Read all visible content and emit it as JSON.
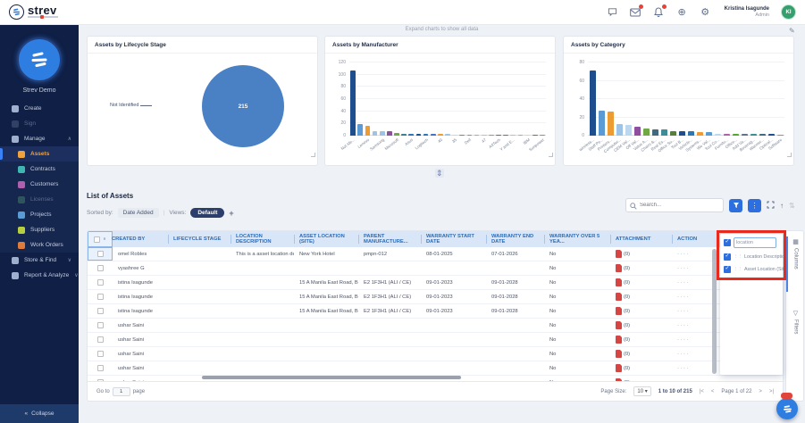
{
  "header": {
    "logo_text": "strev",
    "user_name": "Kristina Isagunde",
    "user_role": "Admin",
    "avatar_initials": "KI"
  },
  "sidebar": {
    "workspace": "Strev Demo",
    "collapse_label": "Collapse",
    "collapse_icon": "«",
    "items": [
      {
        "label": "Create",
        "icon": "create-icon",
        "color": "#9fb0cf"
      },
      {
        "label": "Sign",
        "icon": "sign-icon",
        "color": "#5a6b8c",
        "dim": true
      },
      {
        "label": "Manage",
        "icon": "manage-icon",
        "color": "#9fb0cf",
        "chevron": "up",
        "section": true
      },
      {
        "label": "Assets",
        "icon": "assets-icon",
        "color": "#f0a23c",
        "selected": true,
        "sub": true
      },
      {
        "label": "Contracts",
        "icon": "contracts-icon",
        "color": "#3fb6b2",
        "sub": true
      },
      {
        "label": "Customers",
        "icon": "customers-icon",
        "color": "#b05fae",
        "sub": true
      },
      {
        "label": "Licenses",
        "icon": "licenses-icon",
        "color": "#4f8f6f",
        "dim": true,
        "sub": true
      },
      {
        "label": "Projects",
        "icon": "projects-icon",
        "color": "#5b9bd5",
        "sub": true
      },
      {
        "label": "Suppliers",
        "icon": "suppliers-icon",
        "color": "#b7cf3e",
        "sub": true
      },
      {
        "label": "Work Orders",
        "icon": "work-orders-icon",
        "color": "#e07b3a",
        "sub": true
      },
      {
        "label": "Store & Find",
        "icon": "store-find-icon",
        "color": "#9fb0cf",
        "chevron": "down",
        "section": true
      },
      {
        "label": "Report & Analyze",
        "icon": "report-icon",
        "color": "#9fb0cf",
        "chevron": "down",
        "section": true
      }
    ]
  },
  "main": {
    "hint": "Expand charts to show all data"
  },
  "chart_data": [
    {
      "type": "pie",
      "title": "Assets by Lifecycle Stage",
      "slices": [
        {
          "label": "Not Identified",
          "value": 215
        }
      ],
      "color": "#4a80c4",
      "center_label": "215",
      "callout_label": "Not Identified"
    },
    {
      "type": "bar",
      "title": "Assets by Manufacturer",
      "ylim": [
        0,
        120
      ],
      "yticks": [
        0,
        20,
        40,
        60,
        80,
        100,
        120
      ],
      "values": [
        107,
        19,
        16,
        8,
        8,
        7,
        4,
        3,
        3,
        3,
        3,
        3,
        3,
        2.5,
        2,
        2,
        2,
        2,
        1.5,
        1.5,
        1.5,
        1.5,
        1,
        1,
        1,
        1,
        1
      ],
      "labels": [
        "Not Ide...",
        "Lenovo",
        "Samsung",
        "Microsoft",
        "Asus",
        "Logitech",
        "40",
        "35",
        "Dell",
        "47",
        "A4Tech",
        "Y and E...",
        "IBM",
        "Sunpower"
      ],
      "label_every": 2,
      "grid": true,
      "colors": [
        "#1f4e8f",
        "#5b9bd5",
        "#ed9b33",
        "#9dc3e6",
        "#9dc3e6",
        "#8e4f9e",
        "#70a845",
        "#3e7f8c",
        "#2e75b6",
        "#1f4e8f",
        "#2e75b6",
        "#4472c4",
        "#ed9b33",
        "#9dc3e6",
        "#bdd7ee",
        "#b05fae",
        "#70a845",
        "#a6a6a6",
        "#9dc3e6",
        "#8497b0",
        "#2e75b6",
        "#4472c4",
        "#9dc3e6",
        "#ed9b33",
        "#bdd7ee",
        "#8e4f9e",
        "#70a845"
      ]
    },
    {
      "type": "bar",
      "title": "Assets by Category",
      "ylim": [
        0,
        80
      ],
      "yticks": [
        0,
        20,
        40,
        60,
        80
      ],
      "values": [
        71,
        27,
        26,
        13,
        12,
        10,
        8,
        7,
        7,
        5,
        5,
        5,
        4,
        4,
        2,
        2,
        2,
        2,
        1.5,
        1.5,
        1.5,
        1
      ],
      "labels": [
        "wireless...",
        "Staff Pe...",
        "Printers...",
        "Computer...",
        "OEM Val...",
        "Off Val...",
        "Value A...",
        "Chairs &...",
        "Real Es...",
        "Office Su...",
        "Tool B...",
        "Vehicle...",
        "Systems...",
        "We Val...",
        "Tool Co...",
        "Furnitu...",
        "Office...",
        "Add Va...",
        "Beverag...",
        "Warmer...",
        "Optical...",
        "Software"
      ],
      "label_every": 1,
      "grid": true,
      "colors": [
        "#1f4e8f",
        "#5b9bd5",
        "#ed9b33",
        "#9dc3e6",
        "#bdd7ee",
        "#8e4f9e",
        "#70a845",
        "#44687d",
        "#3e8c96",
        "#55803c",
        "#1f4e8f",
        "#2e75b6",
        "#ed9b33",
        "#5b9bd5",
        "#bdd7ee",
        "#b05fae",
        "#55a630",
        "#607489",
        "#3e8c96",
        "#44687d",
        "#1f4e8f",
        "#5b9bd5"
      ]
    }
  ],
  "list": {
    "title": "List of Assets",
    "sorted_by_label": "Sorted by:",
    "sort_chip": "Date Added",
    "views_label": "Views:",
    "view_chip": "Default",
    "add_view": "+",
    "search_placeholder": "Search..."
  },
  "table": {
    "columns": [
      "CREATED BY",
      "LIFECYCLE STAGE",
      "LOCATION DESCRIPTION",
      "ASSET LOCATION (SITE)",
      "PARENT MANUFACTURE...",
      "WARRANTY START DATE",
      "WARRANTY END DATE",
      "WARRANTY OVER 5 YEA...",
      "ATTACHMENT",
      "ACTION"
    ],
    "rows": [
      {
        "created_by": "omel Robles",
        "lifecycle_stage": "",
        "location_description": "This is a asset location desc...",
        "asset_location": "New York Hotel",
        "parent_manufacturer": "pmpn-012",
        "warranty_start": "08-01-2025",
        "warranty_end": "07-01-2026",
        "warranty_over_5": "No",
        "attachment": "(0)",
        "action": "····"
      },
      {
        "created_by": "vyashree G",
        "lifecycle_stage": "",
        "location_description": "",
        "asset_location": "",
        "parent_manufacturer": "",
        "warranty_start": "",
        "warranty_end": "",
        "warranty_over_5": "No",
        "attachment": "(0)",
        "action": "····"
      },
      {
        "created_by": "istina Isagunde",
        "lifecycle_stage": "",
        "location_description": "",
        "asset_location": "15 A Manila East Road, Brgy...",
        "parent_manufacturer": "E2 1F3H1 (ALI / CE)",
        "warranty_start": "09-01-2023",
        "warranty_end": "09-01-2028",
        "warranty_over_5": "No",
        "attachment": "(0)",
        "action": "····"
      },
      {
        "created_by": "istina Isagunde",
        "lifecycle_stage": "",
        "location_description": "",
        "asset_location": "15 A Manila East Road, Brgy...",
        "parent_manufacturer": "E2 1F3H1 (ALI / CE)",
        "warranty_start": "09-01-2023",
        "warranty_end": "09-01-2028",
        "warranty_over_5": "No",
        "attachment": "(0)",
        "action": "····"
      },
      {
        "created_by": "istina Isagunde",
        "lifecycle_stage": "",
        "location_description": "",
        "asset_location": "15 A Manila East Road, Brgy...",
        "parent_manufacturer": "E2 1F3H1 (ALI / CE)",
        "warranty_start": "09-01-2023",
        "warranty_end": "09-01-2028",
        "warranty_over_5": "No",
        "attachment": "(0)",
        "action": "····"
      },
      {
        "created_by": "ushar Saini",
        "lifecycle_stage": "",
        "location_description": "",
        "asset_location": "",
        "parent_manufacturer": "",
        "warranty_start": "",
        "warranty_end": "",
        "warranty_over_5": "No",
        "attachment": "(0)",
        "action": "····"
      },
      {
        "created_by": "ushar Saini",
        "lifecycle_stage": "",
        "location_description": "",
        "asset_location": "",
        "parent_manufacturer": "",
        "warranty_start": "",
        "warranty_end": "",
        "warranty_over_5": "No",
        "attachment": "(0)",
        "action": "····"
      },
      {
        "created_by": "ushar Saini",
        "lifecycle_stage": "",
        "location_description": "",
        "asset_location": "",
        "parent_manufacturer": "",
        "warranty_start": "",
        "warranty_end": "",
        "warranty_over_5": "No",
        "attachment": "(0)",
        "action": "····"
      },
      {
        "created_by": "ushar Saini",
        "lifecycle_stage": "",
        "location_description": "",
        "asset_location": "",
        "parent_manufacturer": "",
        "warranty_start": "",
        "warranty_end": "",
        "warranty_over_5": "No",
        "attachment": "(0)",
        "action": "····"
      },
      {
        "created_by": "ushar Saini",
        "lifecycle_stage": "",
        "location_description": "",
        "asset_location": "",
        "parent_manufacturer": "",
        "warranty_start": "",
        "warranty_end": "",
        "warranty_over_5": "No",
        "attachment": "(0)",
        "action": "····"
      }
    ]
  },
  "popover": {
    "search_value": "location",
    "items": [
      "Location Description",
      "Asset Location (Site)"
    ]
  },
  "side_tabs": {
    "columns": "Columns",
    "filters": "Filters"
  },
  "footer": {
    "goto_label": "Go to",
    "goto_value": "1",
    "page_label": "page",
    "page_size_label": "Page Size:",
    "page_size": "10",
    "range": "1 to 10 of 215",
    "page_info": "Page 1 of 22"
  },
  "colors": {
    "accent_blue": "#2e6fdf",
    "sidebar_navy": "#0f1f45",
    "selected_amber": "#f0a23c",
    "annotation_red": "#e8291d",
    "avatar_green": "#34a06e"
  }
}
